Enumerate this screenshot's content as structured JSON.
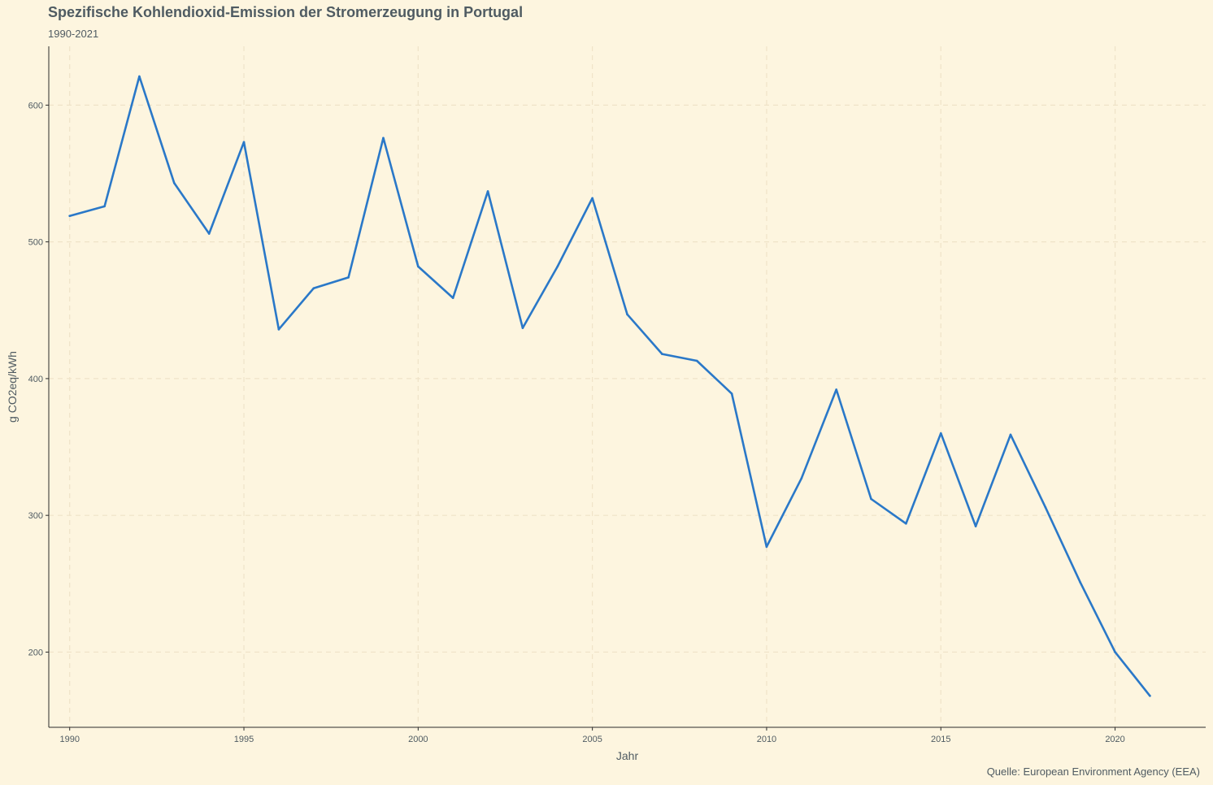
{
  "chart_data": {
    "type": "line",
    "title": "Spezifische Kohlendioxid-Emission der Stromerzeugung in Portugal",
    "subtitle": "1990-2021",
    "caption": "Quelle: European Environment Agency (EEA)",
    "xlabel": "Jahr",
    "ylabel": "g CO2eq/kWh",
    "xlim": [
      1989.4,
      2022.6
    ],
    "ylim": [
      145,
      643
    ],
    "x_ticks": [
      1990,
      1995,
      2000,
      2005,
      2010,
      2015,
      2020
    ],
    "y_ticks": [
      200,
      300,
      400,
      500,
      600
    ],
    "grid": true,
    "line_color": "#2a78c8",
    "grid_color": "#efe3c8",
    "background": "#fdf5df",
    "x": [
      1990,
      1991,
      1992,
      1993,
      1994,
      1995,
      1996,
      1997,
      1998,
      1999,
      2000,
      2001,
      2002,
      2003,
      2004,
      2005,
      2006,
      2007,
      2008,
      2009,
      2010,
      2011,
      2012,
      2013,
      2014,
      2015,
      2016,
      2017,
      2018,
      2019,
      2020,
      2021
    ],
    "values": [
      519,
      526,
      621,
      543,
      506,
      573,
      436,
      466,
      474,
      576,
      482,
      459,
      537,
      437,
      482,
      532,
      447,
      418,
      413,
      389,
      277,
      327,
      392,
      312,
      294,
      360,
      292,
      359,
      306,
      251,
      200,
      168
    ]
  }
}
